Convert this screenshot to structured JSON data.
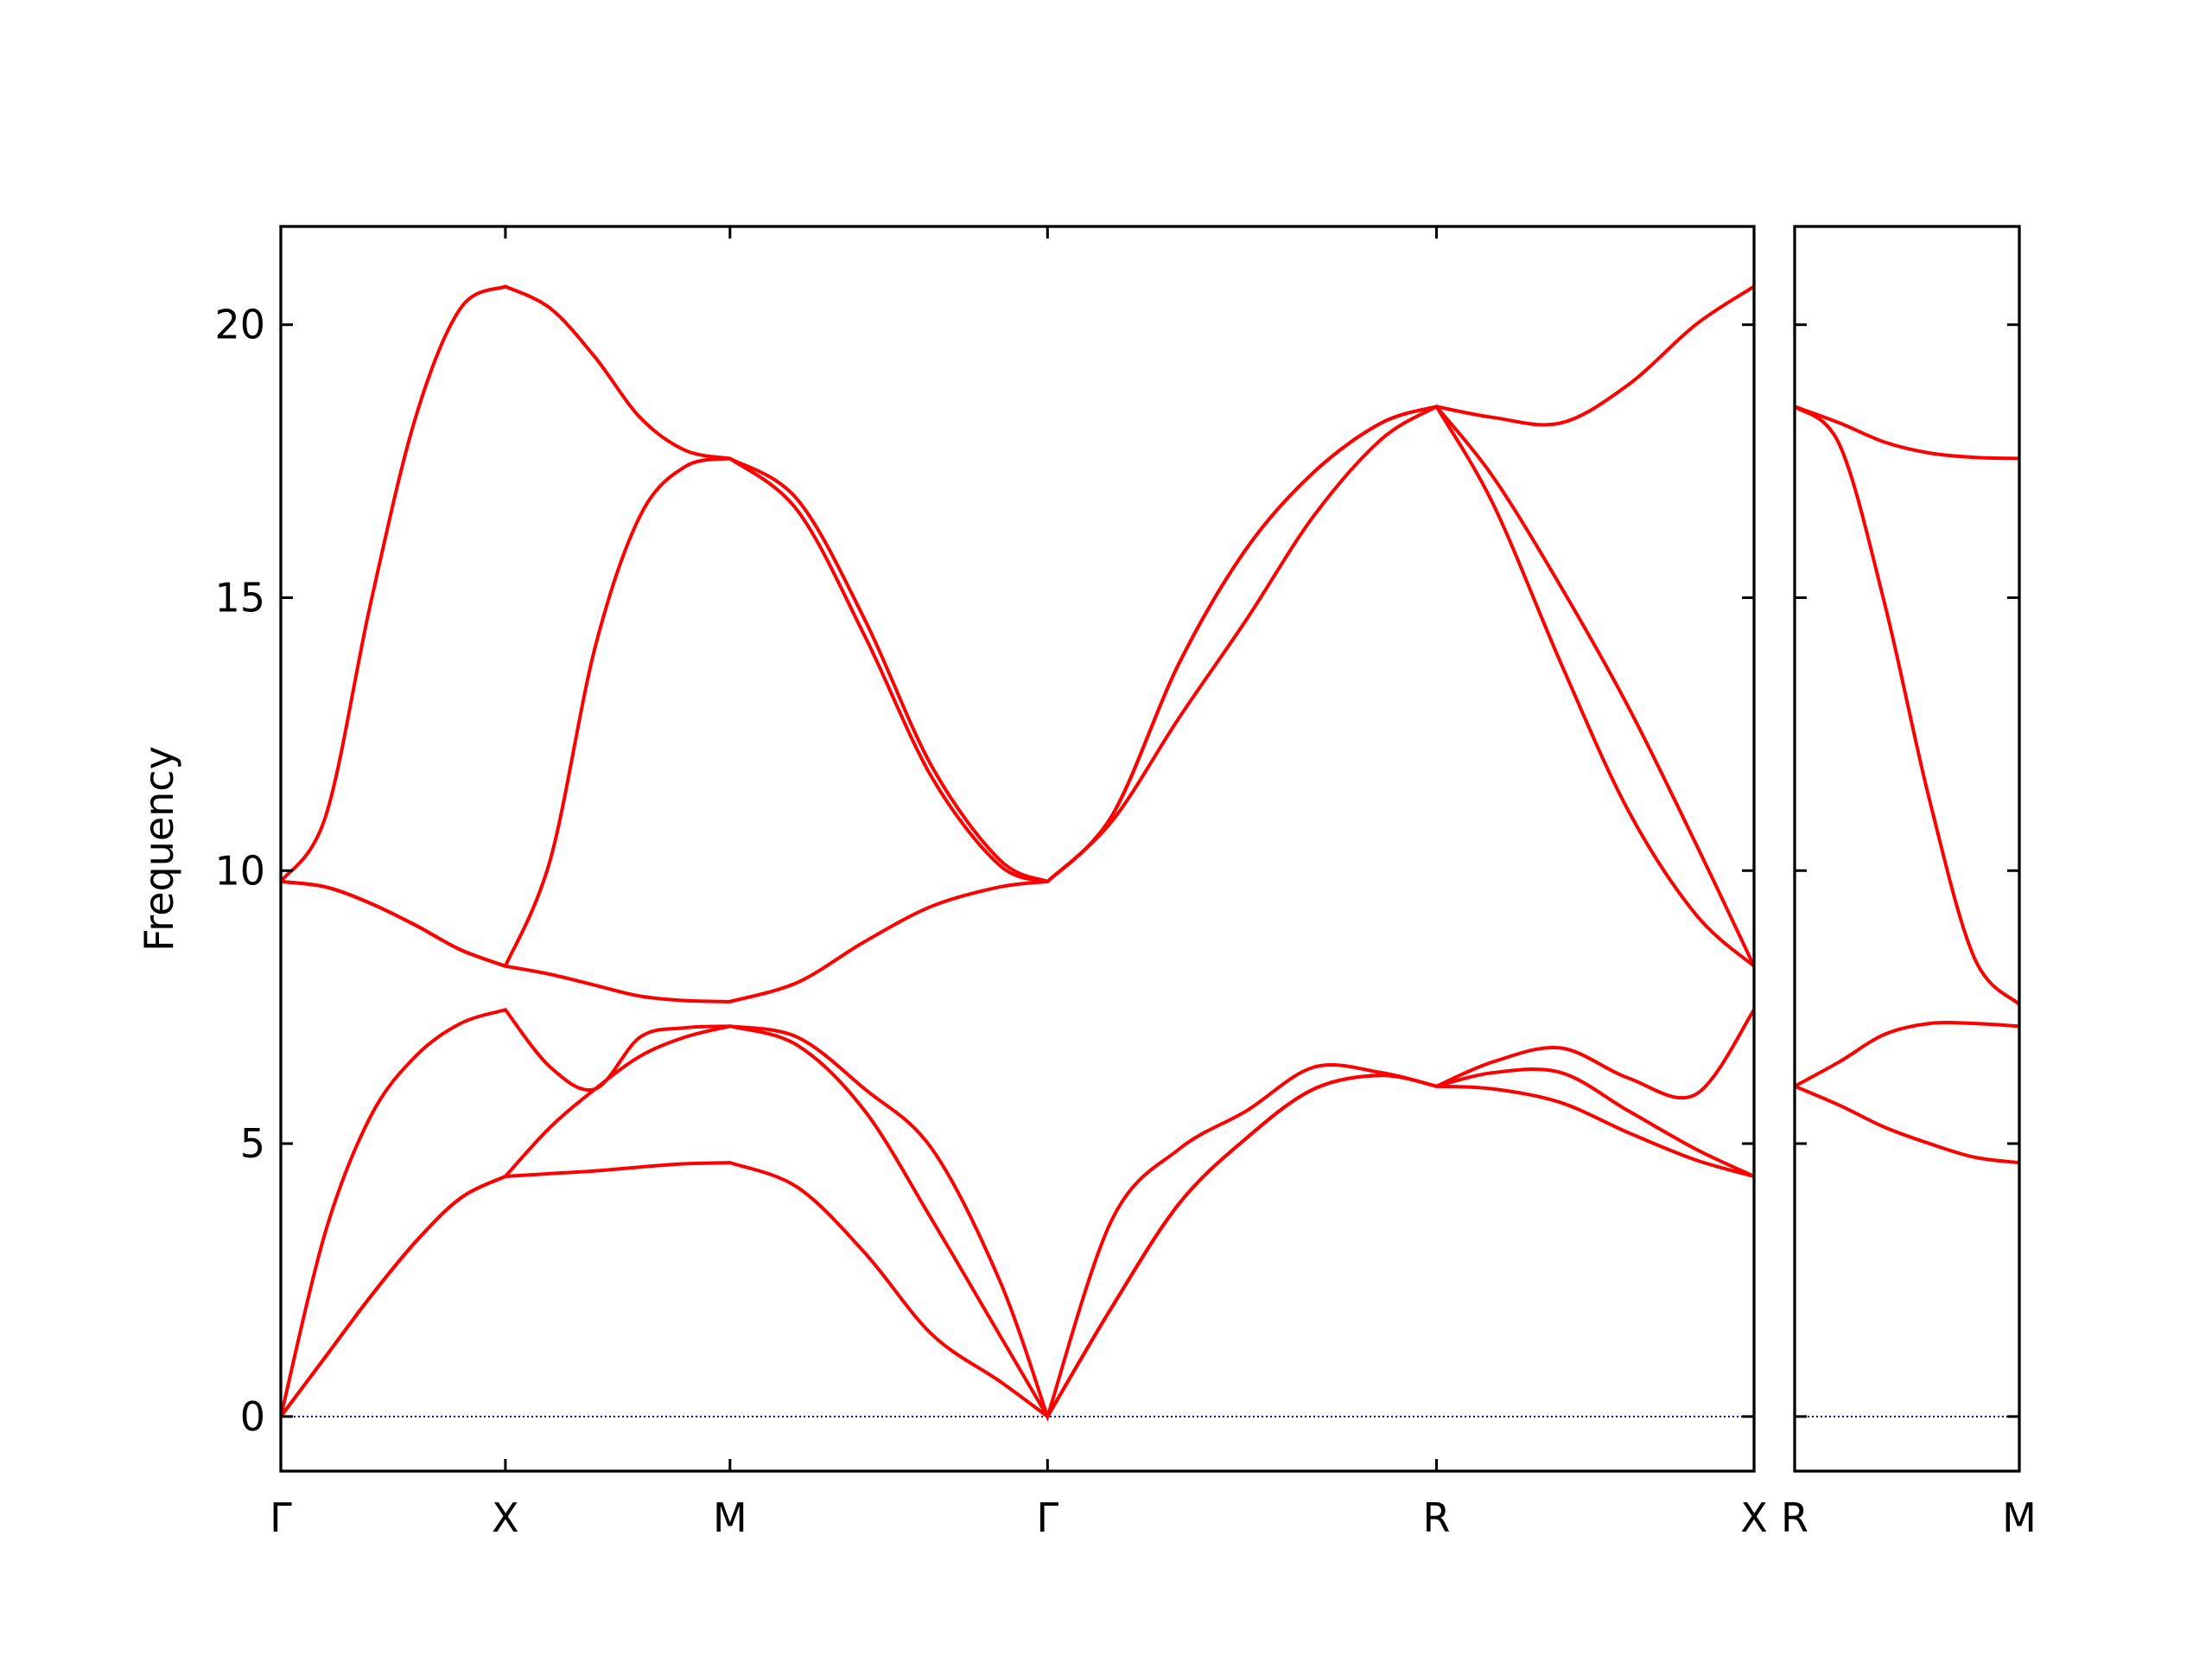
{
  "chart_data": [
    {
      "type": "line",
      "ylabel": "Frequency",
      "x": [
        0,
        0.1,
        0.2,
        0.3,
        0.4,
        0.5,
        0.6,
        0.7,
        0.8,
        0.9,
        1.0,
        1.15,
        1.3,
        1.45,
        1.6,
        1.707,
        1.85,
        2.0,
        2.15,
        2.3,
        2.45,
        2.573,
        2.7,
        2.85,
        3.0,
        3.15,
        3.28
      ],
      "series": [
        {
          "color": "#ff0000",
          "values": [
            0,
            1.1,
            2.2,
            3.2,
            4.0,
            4.4,
            4.45,
            4.5,
            4.57,
            4.63,
            4.65,
            4.2,
            3.0,
            1.5,
            0.65,
            0,
            2.0,
            3.9,
            5.1,
            6.0,
            6.25,
            6.05,
            6.0,
            5.75,
            5.2,
            4.7,
            4.4
          ]
        },
        {
          "color": "#ff0000",
          "values": [
            0,
            1.1,
            2.2,
            3.2,
            4.0,
            4.4,
            5.3,
            6.0,
            6.6,
            6.95,
            7.15,
            6.8,
            5.6,
            3.6,
            1.5,
            0,
            2.0,
            3.9,
            5.1,
            6.0,
            6.25,
            6.05,
            6.3,
            6.3,
            5.6,
            4.9,
            4.4
          ]
        },
        {
          "color": "#ff0000",
          "values": [
            0,
            3.4,
            5.5,
            6.6,
            7.2,
            7.45,
            6.4,
            6.0,
            6.95,
            7.12,
            7.15,
            6.95,
            6.0,
            4.9,
            2.5,
            0,
            3.6,
            4.9,
            5.6,
            6.4,
            6.3,
            6.05,
            6.5,
            6.75,
            6.2,
            5.9,
            7.45
          ]
        },
        {
          "color": "#ff0000",
          "values": [
            9.8,
            9.7,
            9.4,
            9.0,
            8.55,
            8.25,
            8.1,
            7.9,
            7.7,
            7.62,
            7.6,
            7.95,
            8.7,
            9.35,
            9.7,
            9.8,
            10.9,
            12.8,
            14.6,
            16.5,
            17.9,
            18.5,
            16.7,
            13.8,
            11.1,
            9.2,
            8.25
          ]
        },
        {
          "color": "#ff0000",
          "values": [
            9.8,
            9.7,
            9.4,
            9.0,
            8.55,
            8.25,
            10.2,
            14.1,
            16.5,
            17.4,
            17.55,
            16.6,
            14.3,
            11.7,
            10.1,
            9.8,
            11.0,
            13.8,
            15.9,
            17.3,
            18.2,
            18.5,
            17.2,
            15.2,
            13.0,
            10.5,
            8.25
          ]
        },
        {
          "color": "#ff0000",
          "values": [
            9.8,
            11.0,
            14.9,
            18.3,
            20.3,
            20.7,
            20.3,
            19.4,
            18.3,
            17.7,
            17.55,
            16.8,
            14.6,
            11.9,
            10.2,
            9.8,
            11.0,
            13.8,
            15.9,
            17.3,
            18.2,
            18.5,
            18.3,
            18.2,
            18.9,
            20.0,
            20.7
          ]
        }
      ],
      "xlim": [
        0,
        3.28
      ],
      "xticks": [
        {
          "value": 0,
          "label": "Γ"
        },
        {
          "value": 0.5,
          "label": "X"
        },
        {
          "value": 1.0,
          "label": "M"
        },
        {
          "value": 1.707,
          "label": "Γ"
        },
        {
          "value": 2.573,
          "label": "R"
        },
        {
          "value": 3.28,
          "label": "X"
        }
      ],
      "ylim": [
        -1,
        21.8
      ],
      "yticks": [
        0,
        5,
        10,
        15,
        20
      ],
      "ytick_labels": true,
      "hline": 0,
      "hline_color": "#0000aa"
    },
    {
      "type": "line",
      "x": [
        0,
        0.1,
        0.2,
        0.3,
        0.4,
        0.5
      ],
      "series": [
        {
          "color": "#ff0000",
          "values": [
            6.05,
            5.7,
            5.3,
            5.0,
            4.75,
            4.65
          ]
        },
        {
          "color": "#ff0000",
          "values": [
            6.05,
            6.5,
            7.0,
            7.2,
            7.2,
            7.15
          ]
        },
        {
          "color": "#ff0000",
          "values": [
            18.5,
            17.8,
            14.9,
            11.3,
            8.4,
            7.55
          ]
        },
        {
          "color": "#ff0000",
          "values": [
            18.5,
            18.2,
            17.85,
            17.65,
            17.57,
            17.55
          ]
        }
      ],
      "xlim": [
        0,
        0.5
      ],
      "xticks": [
        {
          "value": 0,
          "label": "R"
        },
        {
          "value": 0.5,
          "label": "M"
        }
      ],
      "ylim": [
        -1,
        21.8
      ],
      "yticks": [
        0,
        5,
        10,
        15,
        20
      ],
      "ytick_labels": false,
      "hline": 0,
      "hline_color": "#0000aa"
    }
  ]
}
